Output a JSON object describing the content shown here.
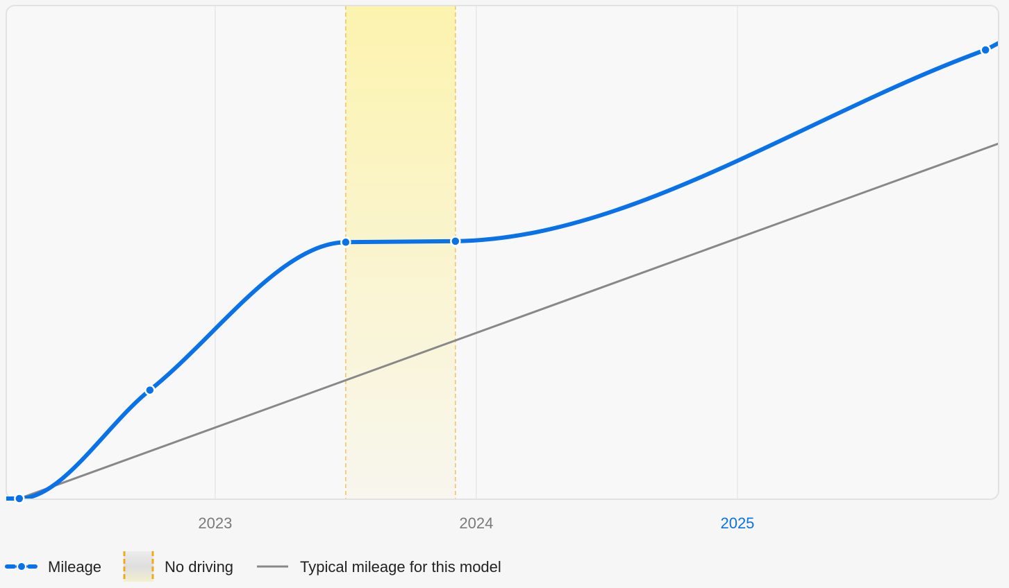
{
  "chart_data": {
    "type": "line",
    "title": "",
    "xlabel": "",
    "ylabel": "",
    "x_ticks": [
      {
        "label": "2023",
        "value": 2023.0,
        "highlight": false
      },
      {
        "label": "2024",
        "value": 2024.0,
        "highlight": false
      },
      {
        "label": "2025",
        "value": 2025.0,
        "highlight": true
      }
    ],
    "xlim": [
      2022.2,
      2026.0
    ],
    "ylim": [
      0,
      100
    ],
    "grid": true,
    "legend_position": "bottom-left",
    "series": [
      {
        "name": "Mileage",
        "style": "blue-thick-with-markers",
        "x": [
          2022.25,
          2022.75,
          2023.5,
          2023.92,
          2025.95
        ],
        "y": [
          0,
          22,
          52,
          52.2,
          91
        ]
      },
      {
        "name": "Typical mileage for this model",
        "style": "gray-line",
        "x": [
          2022.25,
          2026.0
        ],
        "y": [
          0,
          72
        ]
      }
    ],
    "no_driving_period": {
      "name": "No driving",
      "x_start": 2023.5,
      "x_end": 2023.92
    },
    "colors": {
      "mileage": "#0a72e8",
      "typical": "#888888",
      "band_top": "#fcf3ae",
      "band_bottom": "#f8f6ee",
      "band_edge": "#f3c15c",
      "tick_label": "#7a7a7a",
      "tick_highlight": "#0a72e8",
      "panel_bg": "#f8f8f8",
      "panel_border": "#e2e2e2",
      "grid": "#e8e8e8"
    }
  },
  "legend": {
    "mileage_label": "Mileage",
    "no_driving_label": "No driving",
    "typical_label": "Typical mileage for this model"
  }
}
